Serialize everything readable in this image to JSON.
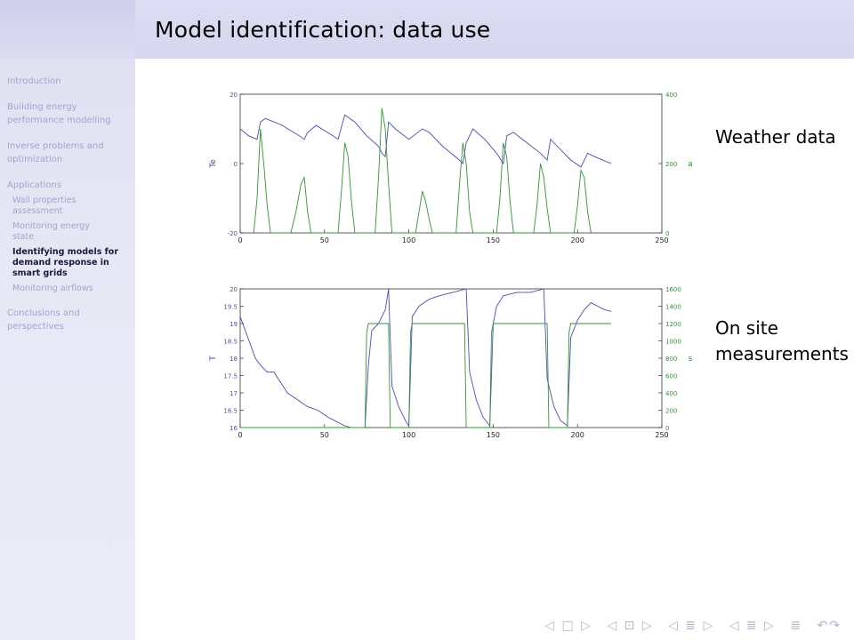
{
  "sidebar": {
    "sections": [
      {
        "label": "Introduction"
      },
      {
        "label": "Building energy\nperformance modelling"
      },
      {
        "label": "Inverse problems and\noptimization"
      },
      {
        "label": "Applications"
      }
    ],
    "subsections": [
      {
        "label": "Wall properties\nassessment",
        "active": false
      },
      {
        "label": "Monitoring energy\nstate",
        "active": false
      },
      {
        "label": "Identifying models for\ndemand response in\nsmart grids",
        "active": true
      },
      {
        "label": "Monitoring airflows",
        "active": false
      }
    ],
    "final_section": {
      "label": "Conclusions and\nperspectives"
    }
  },
  "frame": {
    "title": "Model identification: data use"
  },
  "labels": {
    "weather": "Weather data",
    "onsite": "On site\nmeasurements"
  },
  "colors": {
    "blue_series": "#4a4ac8",
    "green_series": "#2e9a2e",
    "axis": "#333333"
  },
  "chart_data": [
    {
      "type": "line",
      "title": "",
      "xlabel": "",
      "ylabel_left": "Te",
      "ylabel_right": "a",
      "xlim": [
        0,
        250
      ],
      "ylim_left": [
        -20,
        20
      ],
      "ylim_right": [
        0,
        400
      ],
      "x_ticks": [
        "0",
        "50",
        "100",
        "150",
        "200",
        "250"
      ],
      "y_ticks_left": [
        "-20",
        "0",
        "20"
      ],
      "y_ticks_right": [
        "0",
        "200",
        "400"
      ],
      "series": [
        {
          "axis": "left",
          "color": "#4a4ac8",
          "x": [
            0,
            5,
            10,
            12,
            15,
            25,
            35,
            38,
            40,
            45,
            55,
            58,
            62,
            68,
            75,
            82,
            84,
            86,
            88,
            92,
            100,
            108,
            112,
            120,
            130,
            132,
            134,
            138,
            145,
            152,
            156,
            158,
            162,
            170,
            178,
            182,
            184,
            188,
            196,
            202,
            206,
            210,
            215,
            220
          ],
          "y": [
            10,
            8,
            7,
            12,
            13,
            11,
            8,
            7,
            9,
            11,
            8,
            7,
            14,
            12,
            8,
            5,
            3,
            2,
            12,
            10,
            7,
            10,
            9,
            5,
            1,
            0,
            6,
            10,
            7,
            3,
            0,
            8,
            9,
            6,
            3,
            1,
            7,
            5,
            1,
            -1,
            3,
            2,
            1,
            0
          ]
        },
        {
          "axis": "right",
          "color": "#2e9a2e",
          "x": [
            8,
            10,
            12,
            14,
            16,
            18,
            30,
            33,
            36,
            38,
            40,
            42,
            58,
            60,
            62,
            64,
            66,
            68,
            80,
            82,
            84,
            86,
            88,
            90,
            104,
            106,
            108,
            110,
            112,
            114,
            128,
            130,
            132,
            134,
            136,
            138,
            152,
            154,
            156,
            158,
            160,
            162,
            174,
            176,
            178,
            180,
            182,
            184,
            198,
            200,
            202,
            204,
            206,
            208
          ],
          "y": [
            0,
            100,
            300,
            200,
            80,
            0,
            0,
            60,
            140,
            160,
            60,
            0,
            0,
            120,
            260,
            220,
            90,
            0,
            0,
            160,
            360,
            300,
            140,
            0,
            0,
            60,
            120,
            90,
            40,
            0,
            0,
            140,
            260,
            200,
            60,
            0,
            0,
            100,
            260,
            220,
            90,
            0,
            0,
            80,
            200,
            160,
            70,
            0,
            0,
            80,
            180,
            160,
            60,
            0
          ]
        }
      ]
    },
    {
      "type": "line",
      "title": "",
      "xlabel": "",
      "ylabel_left": "T",
      "ylabel_right": "s",
      "xlim": [
        0,
        250
      ],
      "ylim_left": [
        16,
        20
      ],
      "ylim_right": [
        0,
        1600
      ],
      "x_ticks": [
        "0",
        "50",
        "100",
        "150",
        "200",
        "250"
      ],
      "y_ticks_left": [
        "16",
        "16.5",
        "17",
        "17.5",
        "18",
        "18.5",
        "19",
        "19.5",
        "20"
      ],
      "y_ticks_right": [
        "0",
        "200",
        "400",
        "600",
        "800",
        "1000",
        "1200",
        "1400",
        "1600"
      ],
      "series": [
        {
          "axis": "left",
          "color": "#4a4ac8",
          "x": [
            0,
            3,
            6,
            9,
            12,
            16,
            20,
            24,
            28,
            34,
            40,
            46,
            52,
            58,
            62,
            66,
            70,
            74,
            76,
            78,
            82,
            86,
            88,
            90,
            94,
            98,
            100,
            102,
            106,
            112,
            118,
            126,
            134,
            136,
            140,
            144,
            148,
            150,
            152,
            156,
            164,
            172,
            180,
            182,
            186,
            190,
            194,
            196,
            200,
            204,
            208,
            212,
            216,
            220
          ],
          "y": [
            19.2,
            18.8,
            18.4,
            18.0,
            17.8,
            17.6,
            17.6,
            17.3,
            17.0,
            16.8,
            16.6,
            16.5,
            16.3,
            16.15,
            16.05,
            16.0,
            16.0,
            16.0,
            17.8,
            18.8,
            19.0,
            19.4,
            20.0,
            17.2,
            16.6,
            16.2,
            16.05,
            19.2,
            19.5,
            19.7,
            19.8,
            19.9,
            20.0,
            17.6,
            16.8,
            16.3,
            16.05,
            19.0,
            19.5,
            19.8,
            19.9,
            19.9,
            20.0,
            17.4,
            16.6,
            16.2,
            16.05,
            18.6,
            19.1,
            19.4,
            19.6,
            19.5,
            19.4,
            19.35
          ]
        },
        {
          "axis": "right",
          "color": "#2e9a2e",
          "x": [
            0,
            74,
            75,
            76,
            88,
            89,
            100,
            101,
            102,
            133,
            134,
            148,
            149,
            150,
            182,
            183,
            194,
            195,
            196,
            220
          ],
          "y": [
            0,
            0,
            1100,
            1200,
            1200,
            0,
            0,
            1100,
            1200,
            1200,
            0,
            0,
            1100,
            1200,
            1200,
            0,
            0,
            1100,
            1200,
            1200
          ]
        }
      ]
    }
  ],
  "nav_symbols": [
    "◁ □ ▷",
    "◁ ⊡ ▷",
    "◁ ≣ ▷",
    "◁ ≣ ▷",
    "≣",
    "↶↷"
  ]
}
